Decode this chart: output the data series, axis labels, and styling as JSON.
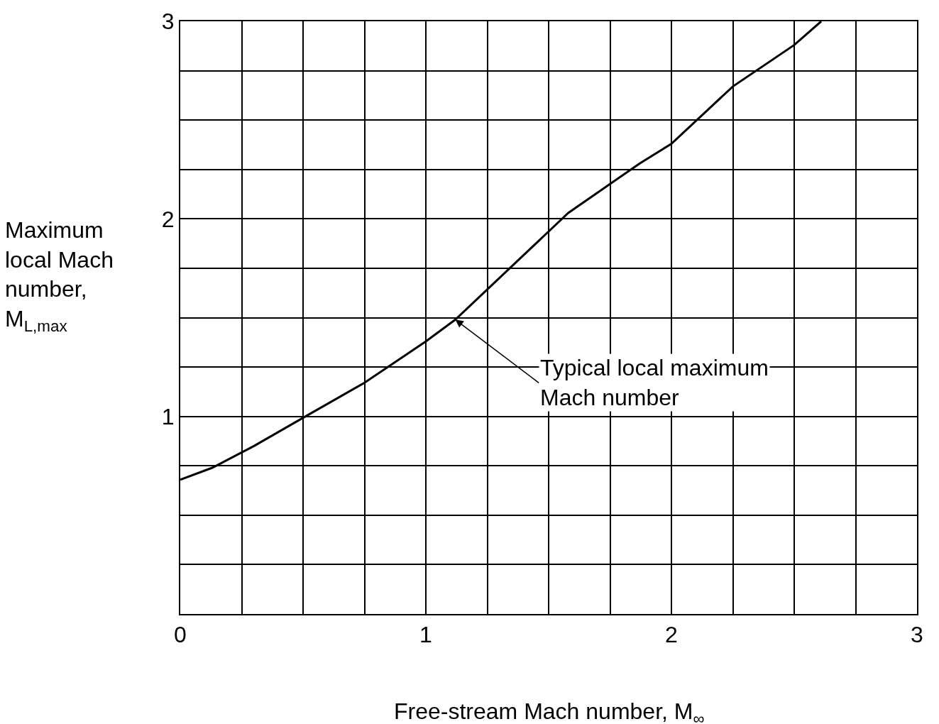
{
  "chart_data": {
    "type": "line",
    "xlabel": "Free-stream Mach number, M$_{∞}$",
    "ylabel": "Maximum\nlocal Mach\nnumber,\nM$_{L,max}$",
    "x": [
      0,
      0.13,
      0.3,
      0.51,
      0.75,
      1.0,
      1.12,
      1.35,
      1.58,
      1.87,
      2.0,
      2.25,
      2.5,
      2.61
    ],
    "series": [
      {
        "color": "#000000",
        "values": [
          0.68,
          0.74,
          0.85,
          1.0,
          1.17,
          1.38,
          1.49,
          1.76,
          2.03,
          2.28,
          2.38,
          2.67,
          2.88,
          3.0
        ]
      }
    ],
    "annotations": [
      {
        "text": "Typical local maximum\nMach number",
        "x": 1.12,
        "y": 1.49
      }
    ],
    "xlim": [
      0,
      3
    ],
    "ylim": [
      0,
      3
    ],
    "xticks": [
      0,
      {
        "value": 0.25,
        "label": null
      },
      {
        "value": 0.5,
        "label": null
      },
      {
        "value": 0.75,
        "label": null
      },
      1,
      {
        "value": 1.25,
        "label": null
      },
      {
        "value": 1.5,
        "label": null
      },
      {
        "value": 1.75,
        "label": null
      },
      2,
      {
        "value": 2.25,
        "label": null
      },
      {
        "value": 2.5,
        "label": null
      },
      {
        "value": 2.75,
        "label": null
      },
      3
    ],
    "yticks": [
      {
        "value": 0,
        "label": null
      },
      {
        "value": 0.25,
        "label": null
      },
      {
        "value": 0.5,
        "label": null
      },
      {
        "value": 0.75,
        "label": null
      },
      1,
      {
        "value": 1.25,
        "label": null
      },
      {
        "value": 1.5,
        "label": null
      },
      {
        "value": 1.75,
        "label": null
      },
      2,
      {
        "value": 2.25,
        "label": null
      },
      {
        "value": 2.5,
        "label": null
      },
      {
        "value": 2.75,
        "label": null
      },
      3
    ],
    "grid": true,
    "line_style": "solid",
    "marker": "none"
  }
}
